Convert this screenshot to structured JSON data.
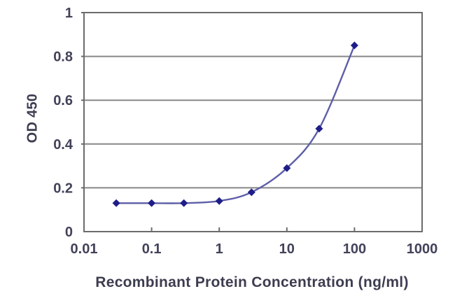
{
  "figure": {
    "background": "#ffffff",
    "kind": "ELISA standard curve"
  },
  "chart_data": {
    "type": "line",
    "title": "",
    "xlabel": "Recombinant Protein Concentration (ng/ml)",
    "ylabel": "OD 450",
    "x_scale": "log",
    "xlim": [
      0.01,
      1000
    ],
    "ylim": [
      0,
      1
    ],
    "x_tick_values": [
      0.01,
      0.1,
      1,
      10,
      100,
      1000
    ],
    "x_tick_labels": [
      "0.01",
      "0.1",
      "1",
      "10",
      "100",
      "1000"
    ],
    "y_tick_values": [
      0,
      0.2,
      0.4,
      0.6,
      0.8,
      1
    ],
    "y_tick_labels": [
      "0",
      "0.2",
      "0.4",
      "0.6",
      "0.8",
      "1"
    ],
    "grid": "horizontal",
    "legend": "none",
    "series": [
      {
        "name": "OD 450",
        "marker": "diamond",
        "line_style": "smooth",
        "x": [
          0.03,
          0.1,
          0.3,
          1,
          3,
          10,
          30,
          100
        ],
        "y": [
          0.13,
          0.13,
          0.13,
          0.14,
          0.18,
          0.29,
          0.47,
          0.85
        ]
      }
    ],
    "colors": {
      "line": "#5e5ea8",
      "marker": "#1e1e88",
      "grid": "#878787",
      "axis": "#6b6b6b",
      "text": "#42425a"
    }
  }
}
